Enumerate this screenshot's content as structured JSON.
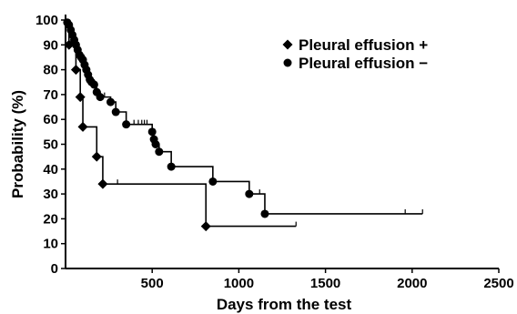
{
  "chart_data": {
    "type": "line",
    "xlabel": "Days from the test",
    "ylabel": "Probability (%)",
    "xlim": [
      0,
      2500
    ],
    "ylim": [
      0,
      100
    ],
    "x_ticks": [
      500,
      1000,
      1500,
      2000,
      2500
    ],
    "y_ticks": [
      0,
      10,
      20,
      30,
      40,
      50,
      60,
      70,
      80,
      90,
      100
    ],
    "grid": false,
    "legend_position": "top-right",
    "series": [
      {
        "name": "Pleural effusion +",
        "marker": "diamond",
        "steps": [
          [
            0,
            100
          ],
          [
            20,
            90
          ],
          [
            60,
            80
          ],
          [
            85,
            69
          ],
          [
            100,
            57
          ],
          [
            180,
            45
          ],
          [
            215,
            34
          ],
          [
            810,
            17
          ],
          [
            1330,
            17
          ]
        ],
        "events": [
          [
            20,
            90
          ],
          [
            60,
            80
          ],
          [
            85,
            69
          ],
          [
            100,
            57
          ],
          [
            180,
            45
          ],
          [
            215,
            34
          ],
          [
            810,
            17
          ]
        ],
        "censored": [
          [
            300,
            34
          ],
          [
            1330,
            17
          ]
        ]
      },
      {
        "name": "Pleural effusion −",
        "marker": "circle",
        "steps": [
          [
            0,
            100
          ],
          [
            10,
            99
          ],
          [
            20,
            98
          ],
          [
            30,
            96
          ],
          [
            40,
            94
          ],
          [
            50,
            92
          ],
          [
            60,
            90
          ],
          [
            70,
            88
          ],
          [
            80,
            86
          ],
          [
            90,
            85
          ],
          [
            100,
            84
          ],
          [
            110,
            82
          ],
          [
            120,
            80
          ],
          [
            130,
            78
          ],
          [
            140,
            76
          ],
          [
            150,
            75
          ],
          [
            165,
            74
          ],
          [
            180,
            71
          ],
          [
            200,
            69
          ],
          [
            260,
            67
          ],
          [
            290,
            63
          ],
          [
            350,
            58
          ],
          [
            500,
            55
          ],
          [
            510,
            52
          ],
          [
            520,
            50
          ],
          [
            540,
            47
          ],
          [
            610,
            41
          ],
          [
            850,
            35
          ],
          [
            1060,
            30
          ],
          [
            1150,
            22
          ],
          [
            2060,
            22
          ]
        ],
        "events": [
          [
            10,
            99
          ],
          [
            20,
            98
          ],
          [
            30,
            96
          ],
          [
            40,
            94
          ],
          [
            50,
            92
          ],
          [
            60,
            90
          ],
          [
            70,
            88
          ],
          [
            80,
            86
          ],
          [
            90,
            85
          ],
          [
            100,
            84
          ],
          [
            110,
            82
          ],
          [
            120,
            80
          ],
          [
            130,
            78
          ],
          [
            140,
            76
          ],
          [
            150,
            75
          ],
          [
            165,
            74
          ],
          [
            180,
            71
          ],
          [
            200,
            69
          ],
          [
            260,
            67
          ],
          [
            290,
            63
          ],
          [
            350,
            58
          ],
          [
            500,
            55
          ],
          [
            510,
            52
          ],
          [
            520,
            50
          ],
          [
            540,
            47
          ],
          [
            610,
            41
          ],
          [
            850,
            35
          ],
          [
            1060,
            30
          ],
          [
            1150,
            22
          ]
        ],
        "censored": [
          [
            225,
            69
          ],
          [
            395,
            58
          ],
          [
            420,
            58
          ],
          [
            440,
            58
          ],
          [
            455,
            58
          ],
          [
            470,
            58
          ],
          [
            1120,
            30
          ],
          [
            1960,
            22
          ],
          [
            2060,
            22
          ]
        ]
      }
    ]
  }
}
